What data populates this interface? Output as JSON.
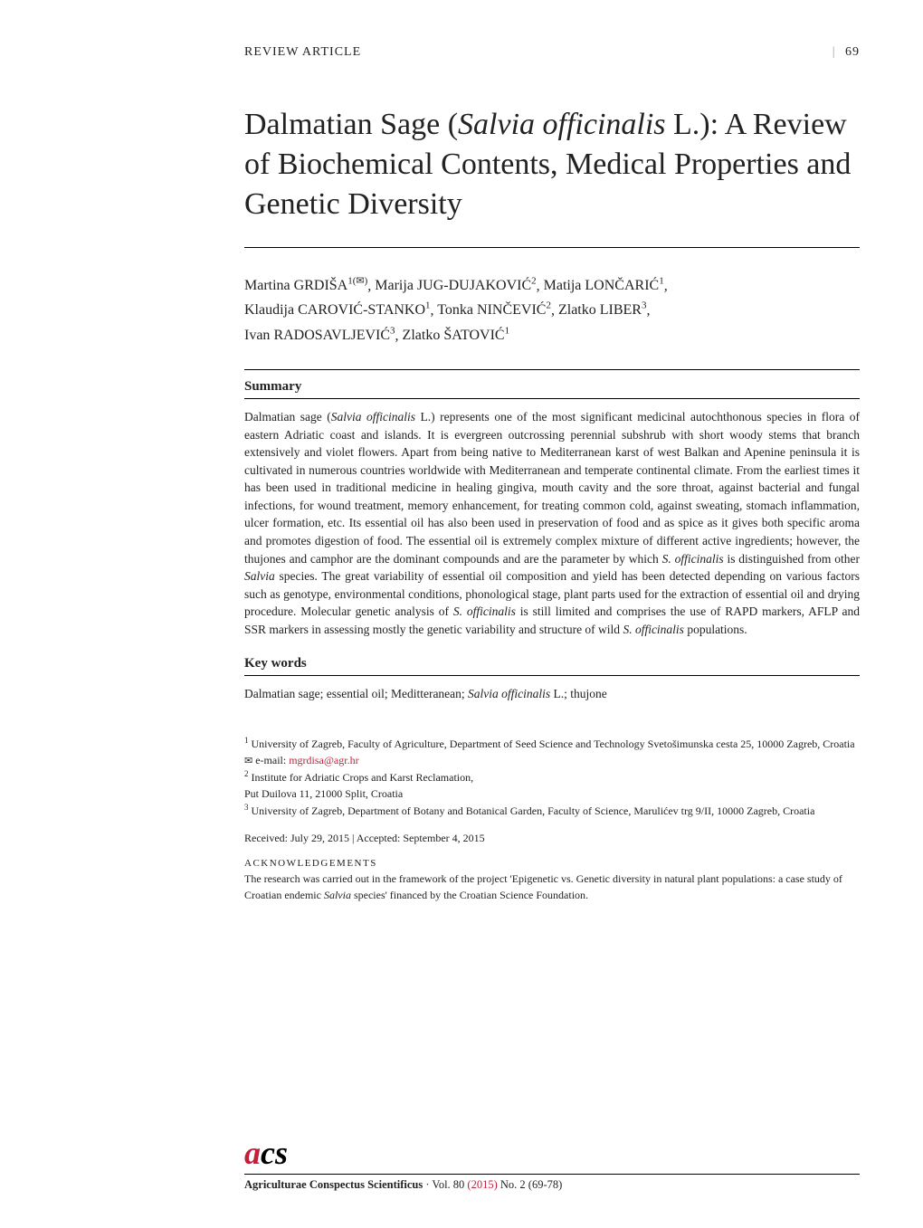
{
  "header": {
    "article_type": "REVIEW ARTICLE",
    "page_number": "69",
    "divider": "|"
  },
  "title": {
    "line1": "Dalmatian Sage (",
    "species_italic": "Salvia officinalis",
    "line1_end": " L.):",
    "line2": "A Review of Biochemical Contents, Medical Properties and Genetic Diversity"
  },
  "authors": [
    {
      "first": "Martina",
      "last": "GRDIŠA",
      "sup": "1(✉)"
    },
    {
      "first": "Marija",
      "last": "JUG-DUJAKOVIĆ",
      "sup": "2"
    },
    {
      "first": "Matija",
      "last": "LONČARIĆ",
      "sup": "1"
    },
    {
      "first": "Klaudija",
      "last": "CAROVIĆ-STANKO",
      "sup": "1"
    },
    {
      "first": "Tonka",
      "last": "NINČEVIĆ",
      "sup": "2"
    },
    {
      "first": "Zlatko",
      "last": "LIBER",
      "sup": "3"
    },
    {
      "first": "Ivan",
      "last": "RADOSAVLJEVIĆ",
      "sup": "3"
    },
    {
      "first": "Zlatko",
      "last": "ŠATOVIĆ",
      "sup": "1"
    }
  ],
  "sections": {
    "summary_heading": "Summary",
    "summary_text_parts": [
      "Dalmatian sage (",
      "Salvia officinalis",
      " L.) represents one of the most significant medicinal autochthonous species in flora of eastern Adriatic coast and islands. It is evergreen outcrossing perennial subshrub with short woody stems that branch extensively and violet flowers. Apart from being native to Mediterranean karst of west Balkan and Apenine peninsula it is cultivated in numerous countries worldwide with Mediterranean and temperate continental climate. From the earliest times it has been used in traditional medicine in healing gingiva, mouth cavity and the sore throat, against bacterial and fungal infections, for wound treatment, memory enhancement, for treating common cold, against sweating, stomach inflammation, ulcer formation, etc. Its essential oil has also been used in preservation of food and as spice as it gives both specific aroma and promotes digestion of food. The essential oil is extremely complex mixture of different active ingredients; however, the thujones and camphor are the dominant compounds and are the parameter by which ",
      "S. officinalis",
      " is distinguished from other ",
      "Salvia",
      " species. The great variability of essential oil composition and yield has been detected depending on various factors such as genotype, environmental conditions, phonological stage, plant parts used for the extraction of essential oil and drying procedure. Molecular genetic analysis of ",
      "S. officinalis",
      " is still limited and comprises the use of RAPD markers, AFLP and SSR markers in assessing mostly the genetic variability and structure of wild ",
      "S. officinalis",
      " populations."
    ],
    "keywords_heading": "Key words",
    "keywords_text_parts": [
      "Dalmatian sage; essential oil; Meditteranean; ",
      "Salvia officinalis",
      " L.; thujone"
    ]
  },
  "affiliations": {
    "items": [
      {
        "sup": "1",
        "text": "University of Zagreb, Faculty of Agriculture, Department of Seed Science and Technology Svetošimunska cesta 25, 10000 Zagreb, Croatia"
      },
      {
        "sup": "✉",
        "prefix": "e-mail: ",
        "email": "mgrdisa@agr.hr"
      },
      {
        "sup": "2",
        "text": "Institute for Adriatic Crops and Karst Reclamation,"
      },
      {
        "sup": "",
        "text": "Put Duilova 11, 21000 Split, Croatia"
      },
      {
        "sup": "3",
        "text": "University of Zagreb, Department of Botany and Botanical Garden, Faculty of Science, Marulićev trg 9/II, 10000 Zagreb, Croatia"
      }
    ]
  },
  "received": "Received: July 29, 2015 | Accepted: September 4, 2015",
  "acknowledgements": {
    "heading": "ACKNOWLEDGEMENTS",
    "text_parts": [
      "The research was carried out in the framework of the project 'Epigenetic vs. Genetic diversity in natural plant populations: a case study of Croatian endemic ",
      "Salvia",
      " species' financed by the Croatian Science Foundation."
    ]
  },
  "footer": {
    "logo_a": "a",
    "logo_cs": "cs",
    "journal_name": "Agriculturae Conspectus Scientificus",
    "separator": " · ",
    "volume": "Vol. 80 ",
    "year": "(2015)",
    "issue": " No. 2 (69-78)"
  },
  "styling": {
    "accent_color": "#c41e3a",
    "text_color": "#222222",
    "background_color": "#ffffff",
    "title_fontsize": 34,
    "body_fontsize": 13.5,
    "affiliation_fontsize": 12,
    "logo_fontsize": 36
  }
}
